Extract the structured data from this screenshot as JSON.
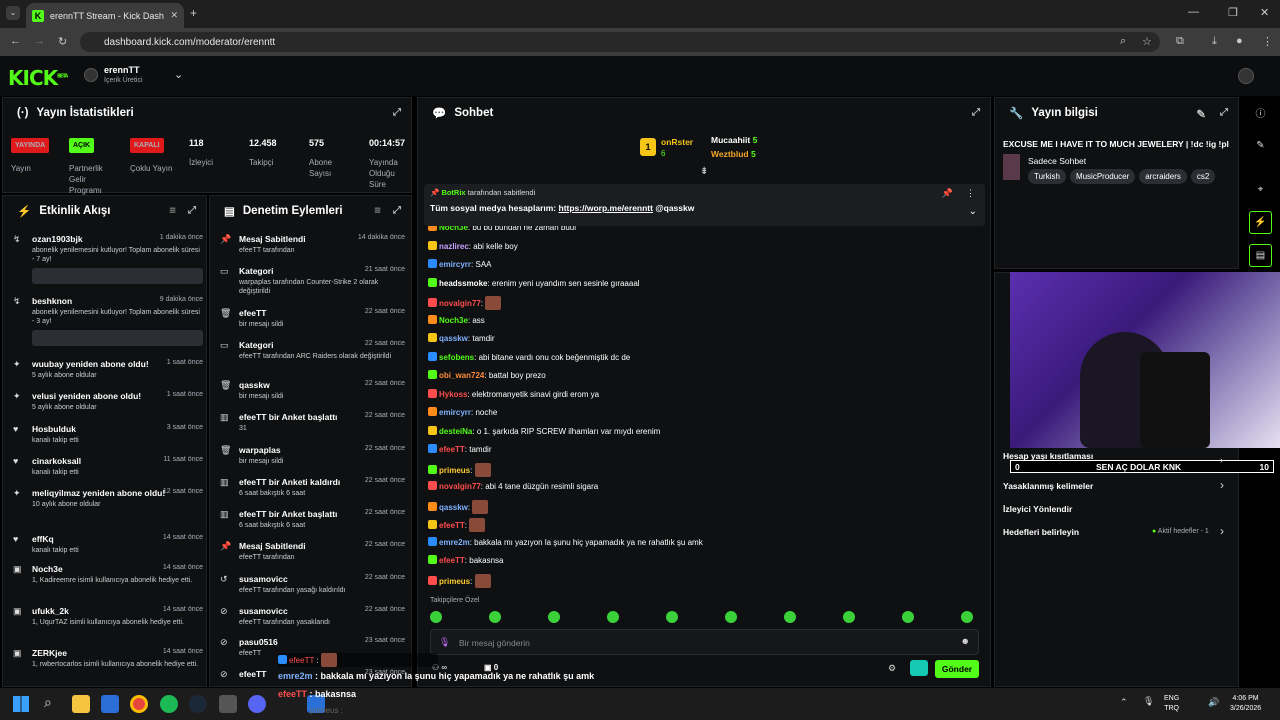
{
  "browser": {
    "tab_title": "erennTT Stream - Kick Dashboard",
    "url": "dashboard.kick.com/moderator/erenntt"
  },
  "topnav": {
    "logo": "KICK",
    "beta": "BETA",
    "channel": "erennTT",
    "role": "İçerik Üretici"
  },
  "stats": {
    "title": "Yayın İstatistikleri",
    "items": [
      {
        "badge": "YAYINDA",
        "label": "Yayın",
        "badge_color": "#e01a1a"
      },
      {
        "badge": "AÇIK",
        "label": "Partnerlik Gelir Programı",
        "badge_color": "#53fc18"
      },
      {
        "badge": "KAPALI",
        "label": "Çoklu Yayın",
        "badge_color": "#e01a1a"
      },
      {
        "value": "118",
        "label": "İzleyici"
      },
      {
        "value": "12.458",
        "label": "Takipçi"
      },
      {
        "value": "575",
        "label": "Abone Sayısı"
      },
      {
        "value": "00:14:57",
        "label": "Yayında Olduğu Süre"
      }
    ]
  },
  "activity": {
    "title": "Etkinlik Akışı",
    "items": [
      {
        "name": "ozan1903bjk",
        "time": "1 dakika önce",
        "desc": "abonelik yenilemesini kutluyor! Toplam abonelik süresi - 7 ay!"
      },
      {
        "name": "beshknon",
        "time": "9 dakika önce",
        "desc": "abonelik yenilemesini kutluyor! Toplam abonelik süresi - 3 ay!"
      },
      {
        "name": "wuubay yeniden abone oldu!",
        "time": "1 saat önce",
        "desc": "5 aylık abone oldular"
      },
      {
        "name": "velusi yeniden abone oldu!",
        "time": "1 saat önce",
        "desc": "5 aylık abone oldular"
      },
      {
        "name": "Hosbulduk",
        "time": "3 saat önce",
        "desc": "kanalı takip etti"
      },
      {
        "name": "cinarkoksall",
        "time": "11 saat önce",
        "desc": "kanalı takip etti"
      },
      {
        "name": "meliqyilmaz yeniden abone oldu!",
        "time": "12 saat önce",
        "desc": "10 aylık abone oldular"
      },
      {
        "name": "effKq",
        "time": "14 saat önce",
        "desc": "kanalı takip etti"
      },
      {
        "name": "Noch3e",
        "time": "14 saat önce",
        "desc": "1, Kadireemre isimli kullanıcıya abonelik hediye etti."
      },
      {
        "name": "ufukk_2k",
        "time": "14 saat önce",
        "desc": "1, UqurTAZ isimli kullanıcıya abonelik hediye etti."
      },
      {
        "name": "ZERKjee",
        "time": "14 saat önce",
        "desc": "1, rwbertocarlos isimli kullanıcıya abonelik hediye etti."
      }
    ]
  },
  "mod": {
    "title": "Denetim Eylemleri",
    "items": [
      {
        "name": "Mesaj Sabitlendi",
        "time": "14 dakika önce",
        "desc": "efeeTT tarafından"
      },
      {
        "name": "Kategori",
        "time": "21 saat önce",
        "desc": "warpaplas tarafından Counter-Strike 2 olarak değiştirildi"
      },
      {
        "name": "efeeTT",
        "time": "22 saat önce",
        "desc": "bir mesajı sildi"
      },
      {
        "name": "Kategori",
        "time": "22 saat önce",
        "desc": "efeeTT tarafından ARC Raiders olarak değiştirildi"
      },
      {
        "name": "qasskw",
        "time": "22 saat önce",
        "desc": "bir mesajı sildi"
      },
      {
        "name": "efeeTT bir Anket başlattı",
        "time": "22 saat önce",
        "desc": "31"
      },
      {
        "name": "warpaplas",
        "time": "22 saat önce",
        "desc": "bir mesajı sildi"
      },
      {
        "name": "efeeTT bir Anketi kaldırdı",
        "time": "22 saat önce",
        "desc": "6 saat bakıştık 6 saat"
      },
      {
        "name": "efeeTT bir Anket başlattı",
        "time": "22 saat önce",
        "desc": "6 saat bakıştık 6 saat"
      },
      {
        "name": "Mesaj Sabitlendi",
        "time": "22 saat önce",
        "desc": "efeeTT tarafından"
      },
      {
        "name": "susamovicc",
        "time": "22 saat önce",
        "desc": "efeeTT tarafından yasağı kaldırıldı"
      },
      {
        "name": "susamovicc",
        "time": "22 saat önce",
        "desc": "efeeTT tarafından yasaklandı"
      },
      {
        "name": "pasu0516",
        "time": "23 saat önce",
        "desc": "efeeTT"
      },
      {
        "name": "efeeTT",
        "time": "23 saat önce",
        "desc": ""
      }
    ]
  },
  "chat": {
    "title": "Sohbet",
    "top1": "onRster",
    "top1_n": "6",
    "top2": "Mucaahiit",
    "top2_n": "5",
    "top3": "Weztblud",
    "top3_n": "5",
    "pinned_by": "BotRix",
    "pinned_suffix": "tarafından sabitlendi",
    "pinned_text": "Tüm sosyal medya hesaplarım:",
    "pinned_link": "https://worp.me/erenntt",
    "pinned_mention": "@qasskw",
    "messages": [
      {
        "user": "Noch3e",
        "text": "bu bu bundan ne zaman buul",
        "color": "#53fc18"
      },
      {
        "user": "nazlirec",
        "text": "abi kelle boy",
        "color": "#c8a2ff"
      },
      {
        "user": "emircyrr",
        "text": "SAA",
        "color": "#7fb2ff"
      },
      {
        "user": "headssmoke",
        "text": "erenim yeni uyandım sen sesinle gıraaaal",
        "color": "#ffffff"
      },
      {
        "user": "novalgin77",
        "text": "",
        "color": "#ff4d4d"
      },
      {
        "user": "Noch3e",
        "text": "ass",
        "color": "#53fc18"
      },
      {
        "user": "qasskw",
        "text": "tamdir",
        "color": "#7fb2ff"
      },
      {
        "user": "sefobens",
        "text": "abi bitane vardı onu cok beğenmiştik dc de",
        "color": "#53fc18"
      },
      {
        "user": "obi_wan724",
        "text": "battal boy prezo",
        "color": "#ff8c3a"
      },
      {
        "user": "Hykoss",
        "text": "elektromanyetik sinavi girdi erom ya",
        "color": "#ff4d4d"
      },
      {
        "user": "emircyrr",
        "text": "noche",
        "color": "#7fb2ff"
      },
      {
        "user": "desteiNa",
        "text": "o 1. şarkıda RIP SCREW ilhamları var mıydı erenim",
        "color": "#53fc18"
      },
      {
        "user": "efeeTT",
        "text": "tamdir",
        "color": "#ff4d4d"
      },
      {
        "user": "primeus",
        "text": "",
        "color": "#ffcc33"
      },
      {
        "user": "novalgin77",
        "text": "abi 4 tane düzgün resimli sigara",
        "color": "#ff4d4d"
      },
      {
        "user": "qasskw",
        "text": "",
        "color": "#7fb2ff"
      },
      {
        "user": "efeeTT",
        "text": "",
        "color": "#ff4d4d"
      },
      {
        "user": "emre2m",
        "text": "bakkala mı yazıyon la şunu hiç yapamadık ya ne rahatlık şu amk",
        "color": "#7fb2ff"
      },
      {
        "user": "efeeTT",
        "text": "bakasnsa",
        "color": "#ff4d4d"
      },
      {
        "user": "primeus",
        "text": "",
        "color": "#ffcc33"
      }
    ],
    "followers_only": "Takipçilere Özel",
    "input_placeholder": "Bir mesaj gönderin",
    "send": "Gönder",
    "count0": "0",
    "overlay1_user": "emre2m",
    "overlay1_text": "bakkala mı yazıyon la şunu hiç yapamadık ya ne rahatlık şu amk",
    "overlay2_user": "efeeTT",
    "overlay2_text": "bakasnsa",
    "overlay3_user": "primeus",
    "overlay4_user": "efeeTT"
  },
  "info": {
    "title": "Yayın bilgisi",
    "stream_title": "EXCUSE ME I HAVE IT TO MUCH JEWELERY | !dc !ig !pl",
    "category": "Sadece Sohbet",
    "tags": [
      "Turkish",
      "MusicProducer",
      "arcraiders",
      "cs2"
    ],
    "restrict": "Hesap yaşı kısıtlaması",
    "goal_left": "0",
    "goal_text": "SEN AÇ DOLAR KNK",
    "goal_right": "10",
    "banned": "Yasaklanmış kelimeler",
    "redirect": "İzleyici Yönlendir",
    "goals": "Hedefleri belirleyin",
    "active_goals": "Aktif hedefler - 1"
  },
  "taskbar": {
    "lang1": "ENG",
    "lang2": "TRQ",
    "time": "4:06 PM",
    "date": "3/26/2026"
  }
}
